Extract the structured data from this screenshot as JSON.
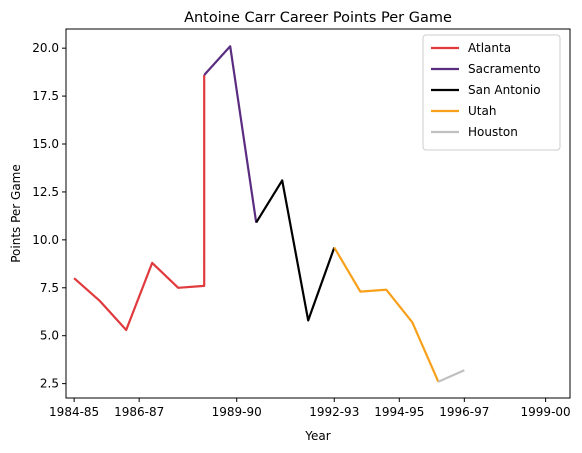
{
  "chart_data": {
    "type": "line",
    "title": "Antoine Carr Career Points Per Game",
    "xlabel": "Year",
    "ylabel": "Points Per Game",
    "xlim": [
      1984.25,
      1999.75
    ],
    "ylim": [
      1.75,
      21.0
    ],
    "x_tick_labels": [
      {
        "x": 1984.5,
        "label": "1984-85"
      },
      {
        "x": 1986.5,
        "label": "1986-87"
      },
      {
        "x": 1989.5,
        "label": "1989-90"
      },
      {
        "x": 1992.5,
        "label": "1992-93"
      },
      {
        "x": 1994.5,
        "label": "1994-95"
      },
      {
        "x": 1996.5,
        "label": "1996-97"
      },
      {
        "x": 1999.0,
        "label": "1999-00"
      }
    ],
    "y_ticks": [
      2.5,
      5.0,
      7.5,
      10.0,
      12.5,
      15.0,
      17.5,
      20.0
    ],
    "y_tick_labels": [
      "2.5",
      "5.0",
      "7.5",
      "10.0",
      "12.5",
      "15.0",
      "17.5",
      "20.0"
    ],
    "grid": false,
    "legend_position": "top-right",
    "series": [
      {
        "name": "Atlanta",
        "color": "#e03a3e",
        "x": [
          1984.5,
          1985.3,
          1986.1,
          1986.9,
          1987.7,
          1988.5,
          1988.5
        ],
        "y": [
          8.0,
          6.8,
          5.3,
          8.8,
          7.5,
          7.6,
          18.6
        ]
      },
      {
        "name": "Sacramento",
        "color": "#5a2d81",
        "x": [
          1988.5,
          1989.3,
          1990.1
        ],
        "y": [
          18.6,
          20.1,
          10.9
        ]
      },
      {
        "name": "San Antonio",
        "color": "#000000",
        "x": [
          1990.1,
          1990.9,
          1991.7,
          1992.5
        ],
        "y": [
          10.9,
          13.1,
          5.8,
          9.6
        ]
      },
      {
        "name": "Utah",
        "color": "#f9a01b",
        "x": [
          1992.5,
          1993.3,
          1994.1,
          1994.9,
          1995.7
        ],
        "y": [
          9.6,
          7.3,
          7.4,
          5.7,
          2.6
        ]
      },
      {
        "name": "Houston",
        "color": "#c0c0c0",
        "x": [
          1995.7,
          1996.5
        ],
        "y": [
          2.6,
          3.2
        ]
      }
    ]
  }
}
